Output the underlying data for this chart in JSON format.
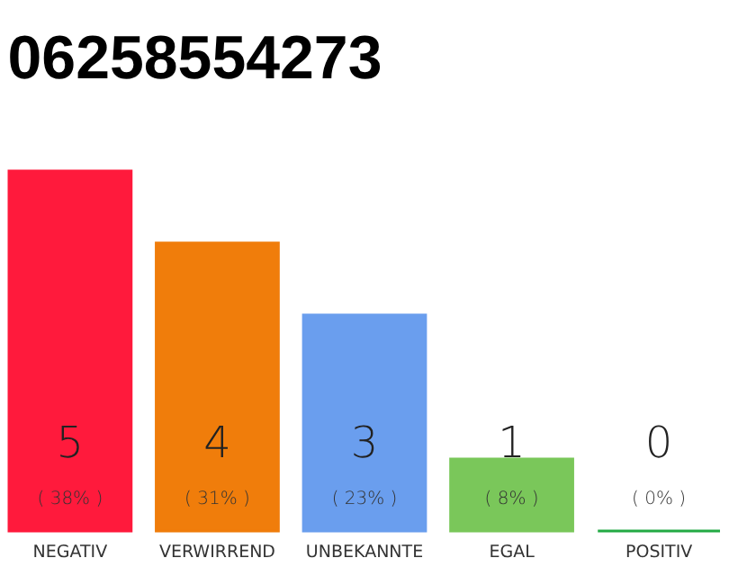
{
  "chart_data": {
    "type": "bar",
    "title": "06258554273",
    "categories": [
      "NEGATIV",
      "VERWIRREND",
      "UNBEKANNTE",
      "EGAL",
      "POSITIV"
    ],
    "values": [
      5,
      4,
      3,
      1,
      0
    ],
    "colors": [
      "#ff1a3c",
      "#f07d0b",
      "#6a9eee",
      "#7ac75a",
      "#22aa44"
    ],
    "tick_labels": "x",
    "grid": false,
    "value_labels": [
      "5",
      "4",
      "3",
      "1",
      "0"
    ],
    "annotations": [
      "( 38% )",
      "( 31% )",
      "( 23% )",
      "( 8% )",
      "( 0% )"
    ]
  }
}
